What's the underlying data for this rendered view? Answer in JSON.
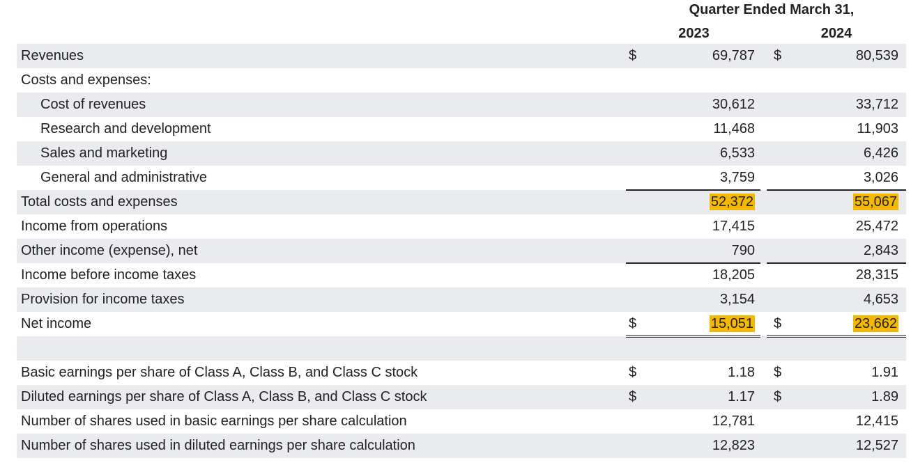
{
  "header": {
    "title": "Quarter Ended March 31,",
    "year1": "2023",
    "year2": "2024"
  },
  "colors": {
    "row_shade": "#e9ebee",
    "highlight": "#f5b800",
    "text": "#222222"
  },
  "rows": [
    {
      "label": "Revenues",
      "cur1": "$",
      "v1": "69,787",
      "cur2": "$",
      "v2": "80,539",
      "shade": true
    },
    {
      "label": "Costs and expenses:",
      "cur1": "",
      "v1": "",
      "cur2": "",
      "v2": "",
      "shade": false
    },
    {
      "label": "Cost of revenues",
      "cur1": "",
      "v1": "30,612",
      "cur2": "",
      "v2": "33,712",
      "shade": true,
      "indent": true
    },
    {
      "label": "Research and development",
      "cur1": "",
      "v1": "11,468",
      "cur2": "",
      "v2": "11,903",
      "shade": false,
      "indent": true
    },
    {
      "label": "Sales and marketing",
      "cur1": "",
      "v1": "6,533",
      "cur2": "",
      "v2": "6,426",
      "shade": true,
      "indent": true
    },
    {
      "label": "General and administrative",
      "cur1": "",
      "v1": "3,759",
      "cur2": "",
      "v2": "3,026",
      "shade": false,
      "indent": true
    },
    {
      "label": "Total costs and expenses",
      "cur1": "",
      "v1": "52,372",
      "cur2": "",
      "v2": "55,067",
      "shade": true,
      "highlight": true
    },
    {
      "label": "Income from operations",
      "cur1": "",
      "v1": "17,415",
      "cur2": "",
      "v2": "25,472",
      "shade": false
    },
    {
      "label": "Other income (expense), net",
      "cur1": "",
      "v1": "790",
      "cur2": "",
      "v2": "2,843",
      "shade": true
    },
    {
      "label": "Income before income taxes",
      "cur1": "",
      "v1": "18,205",
      "cur2": "",
      "v2": "28,315",
      "shade": false
    },
    {
      "label": "Provision for income taxes",
      "cur1": "",
      "v1": "3,154",
      "cur2": "",
      "v2": "4,653",
      "shade": true
    },
    {
      "label": "Net income",
      "cur1": "$",
      "v1": "15,051",
      "cur2": "$",
      "v2": "23,662",
      "shade": false,
      "highlight": true
    },
    {
      "label": "",
      "cur1": "",
      "v1": "",
      "cur2": "",
      "v2": "",
      "shade": true
    },
    {
      "label": "Basic earnings per share of Class A, Class B, and Class C stock",
      "cur1": "$",
      "v1": "1.18",
      "cur2": "$",
      "v2": "1.91",
      "shade": false
    },
    {
      "label": "Diluted earnings per share of Class A, Class B, and Class C stock",
      "cur1": "$",
      "v1": "1.17",
      "cur2": "$",
      "v2": "1.89",
      "shade": true
    },
    {
      "label": "Number of shares used in basic earnings per share calculation",
      "cur1": "",
      "v1": "12,781",
      "cur2": "",
      "v2": "12,415",
      "shade": false
    },
    {
      "label": "Number of shares used in diluted earnings per share calculation",
      "cur1": "",
      "v1": "12,823",
      "cur2": "",
      "v2": "12,527",
      "shade": true
    }
  ]
}
